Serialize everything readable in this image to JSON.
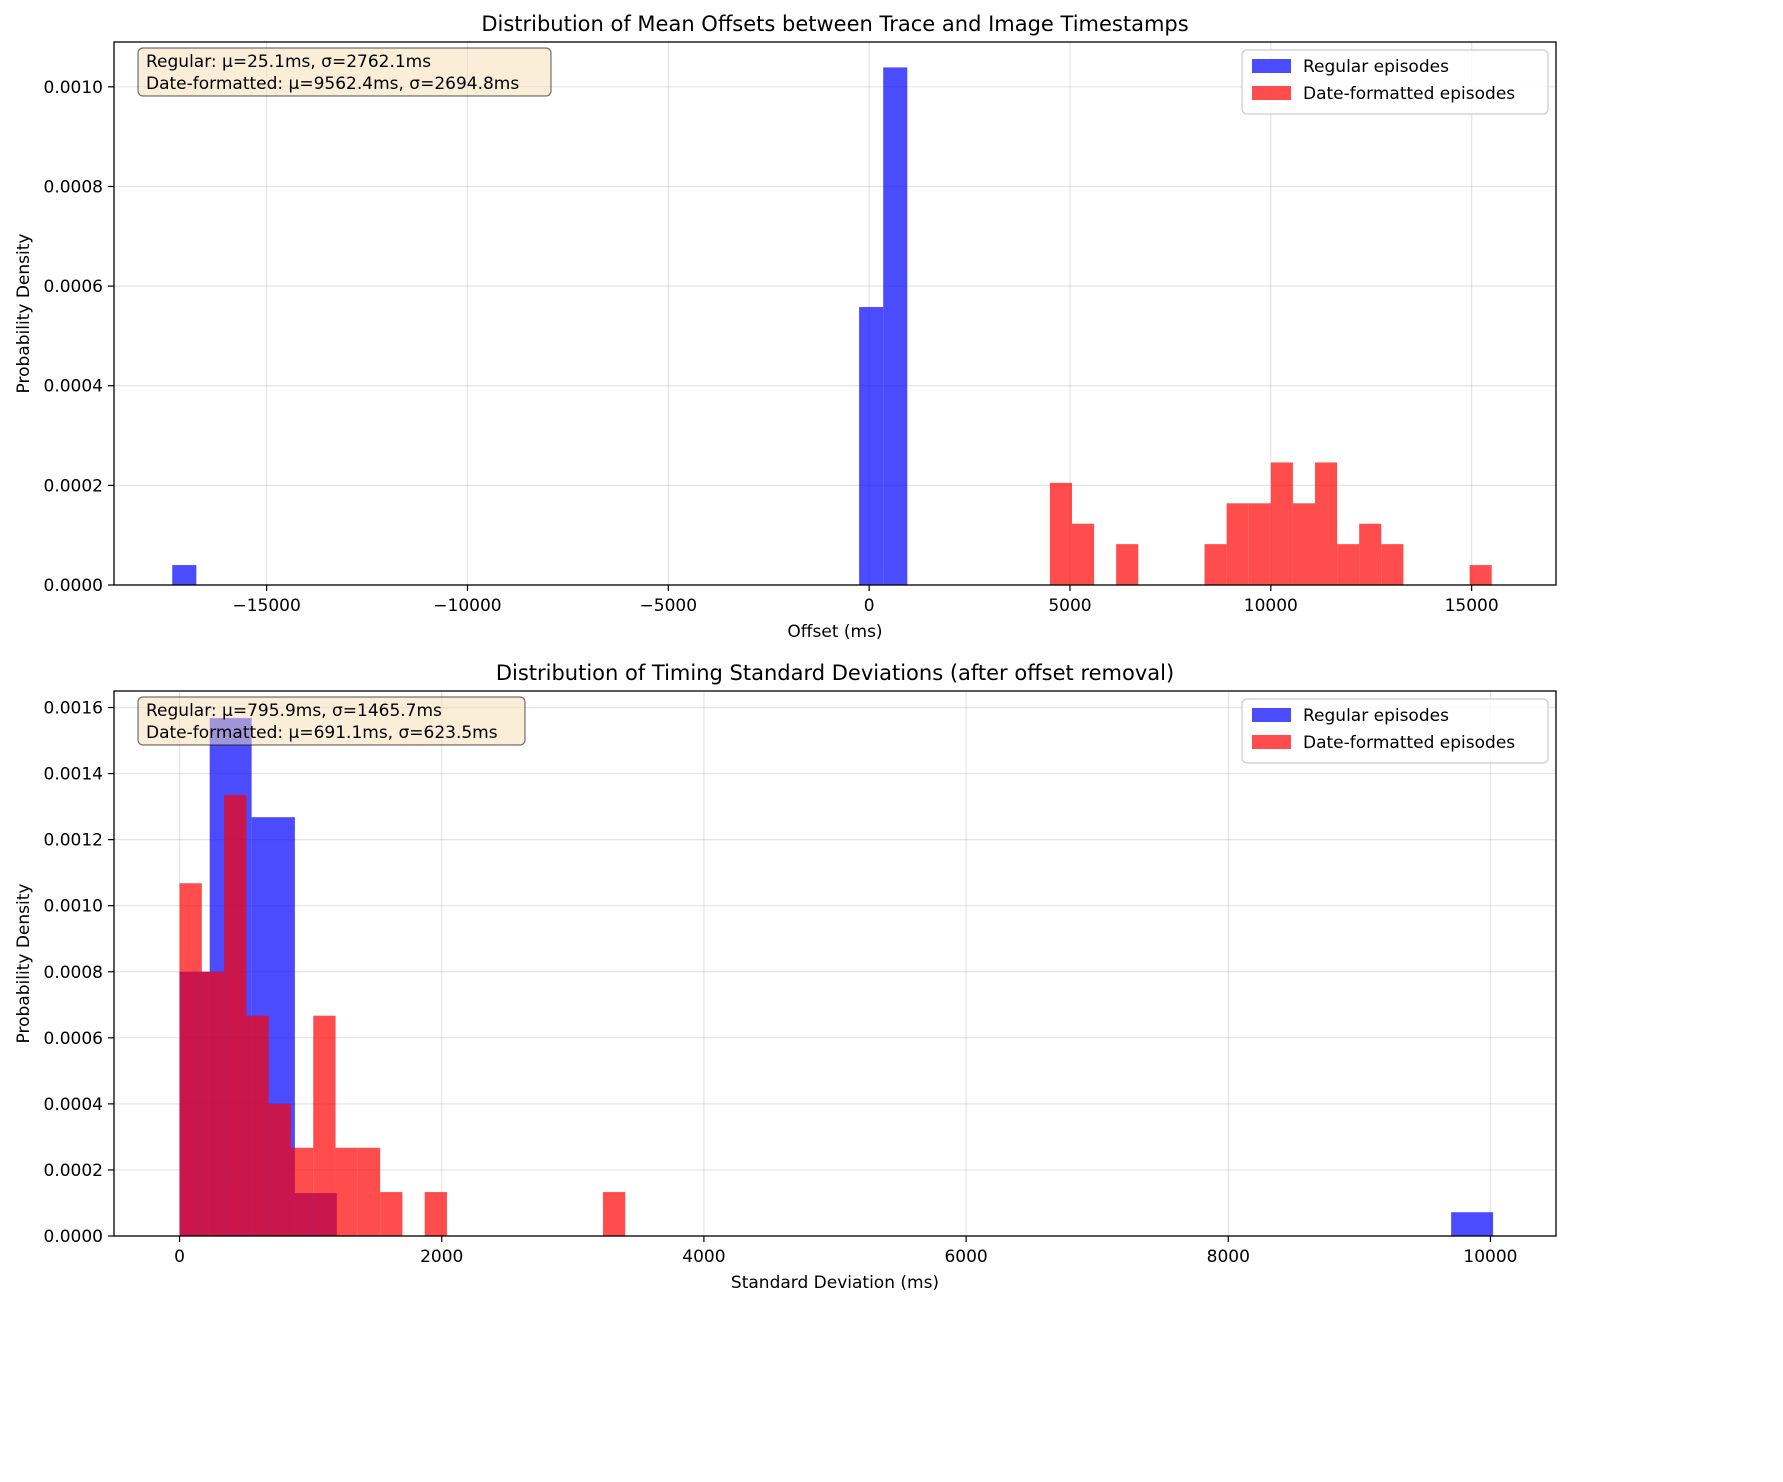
{
  "chart_data": [
    {
      "type": "histogram",
      "title": "Distribution of Mean Offsets between Trace and Image Timestamps",
      "xlabel": "Offset (ms)",
      "ylabel": "Probability Density",
      "xlim": [
        -18800,
        17100
      ],
      "ylim": [
        0,
        0.00109
      ],
      "xticks": [
        -15000,
        -10000,
        -5000,
        0,
        5000,
        10000,
        15000
      ],
      "xtick_labels": [
        "−15000",
        "−10000",
        "−5000",
        "0",
        "5000",
        "10000",
        "15000"
      ],
      "yticks": [
        0,
        0.0002,
        0.0004,
        0.0006,
        0.0008,
        0.001
      ],
      "ytick_labels": [
        "0.0000",
        "0.0002",
        "0.0004",
        "0.0006",
        "0.0008",
        "0.0010"
      ],
      "grid": true,
      "legend_position": "top-right",
      "stats_text": [
        "Regular: μ=25.1ms, σ=2762.1ms",
        "Date-formatted: μ=9562.4ms, σ=2694.8ms"
      ],
      "series": [
        {
          "name": "Regular episodes",
          "color": "#0000ff",
          "bins": [
            {
              "x0": -17350,
              "x1": -16750,
              "density": 4e-05
            },
            {
              "x0": -250,
              "x1": 350,
              "density": 0.000558
            },
            {
              "x0": 350,
              "x1": 950,
              "density": 0.001039
            }
          ]
        },
        {
          "name": "Date-formatted episodes",
          "color": "#ff0000",
          "bins": [
            {
              "x0": 4500,
              "x1": 5050,
              "density": 0.000205
            },
            {
              "x0": 5050,
              "x1": 5600,
              "density": 0.000123
            },
            {
              "x0": 6150,
              "x1": 6700,
              "density": 8.2e-05
            },
            {
              "x0": 8350,
              "x1": 8900,
              "density": 8.2e-05
            },
            {
              "x0": 8900,
              "x1": 9450,
              "density": 0.000164
            },
            {
              "x0": 9450,
              "x1": 10000,
              "density": 0.000164
            },
            {
              "x0": 10000,
              "x1": 10550,
              "density": 0.000246
            },
            {
              "x0": 10550,
              "x1": 11100,
              "density": 0.000164
            },
            {
              "x0": 11100,
              "x1": 11650,
              "density": 0.000246
            },
            {
              "x0": 11650,
              "x1": 12200,
              "density": 8.2e-05
            },
            {
              "x0": 12200,
              "x1": 12750,
              "density": 0.000123
            },
            {
              "x0": 12750,
              "x1": 13300,
              "density": 8.2e-05
            },
            {
              "x0": 14950,
              "x1": 15500,
              "density": 4e-05
            }
          ]
        }
      ]
    },
    {
      "type": "histogram",
      "title": "Distribution of Timing Standard Deviations (after offset removal)",
      "xlabel": "Standard Deviation (ms)",
      "ylabel": "Probability Density",
      "xlim": [
        -500,
        10500
      ],
      "ylim": [
        0,
        0.00165
      ],
      "xticks": [
        0,
        2000,
        4000,
        6000,
        8000,
        10000
      ],
      "xtick_labels": [
        "0",
        "2000",
        "4000",
        "6000",
        "8000",
        "10000"
      ],
      "yticks": [
        0,
        0.0002,
        0.0004,
        0.0006,
        0.0008,
        0.001,
        0.0012,
        0.0014,
        0.0016
      ],
      "ytick_labels": [
        "0.0000",
        "0.0002",
        "0.0004",
        "0.0006",
        "0.0008",
        "0.0010",
        "0.0012",
        "0.0014",
        "0.0016"
      ],
      "grid": true,
      "legend_position": "top-right",
      "stats_text": [
        "Regular: μ=795.9ms, σ=1465.7ms",
        "Date-formatted: μ=691.1ms, σ=623.5ms"
      ],
      "series": [
        {
          "name": "Regular episodes",
          "color": "#0000ff",
          "bins": [
            {
              "x0": 0,
              "x1": 230,
              "density": 0.0008
            },
            {
              "x0": 230,
              "x1": 550,
              "density": 0.001568
            },
            {
              "x0": 550,
              "x1": 880,
              "density": 0.001268
            },
            {
              "x0": 880,
              "x1": 1200,
              "density": 0.00013
            },
            {
              "x0": 9700,
              "x1": 10020,
              "density": 7.2e-05
            }
          ]
        },
        {
          "name": "Date-formatted episodes",
          "color": "#ff0000",
          "bins": [
            {
              "x0": 0,
              "x1": 170,
              "density": 0.001068
            },
            {
              "x0": 170,
              "x1": 340,
              "density": 0.0008
            },
            {
              "x0": 340,
              "x1": 510,
              "density": 0.001335
            },
            {
              "x0": 510,
              "x1": 680,
              "density": 0.000667
            },
            {
              "x0": 680,
              "x1": 850,
              "density": 0.0004
            },
            {
              "x0": 850,
              "x1": 1020,
              "density": 0.000267
            },
            {
              "x0": 1020,
              "x1": 1190,
              "density": 0.000667
            },
            {
              "x0": 1190,
              "x1": 1360,
              "density": 0.000267
            },
            {
              "x0": 1360,
              "x1": 1530,
              "density": 0.000267
            },
            {
              "x0": 1530,
              "x1": 1700,
              "density": 0.000133
            },
            {
              "x0": 1870,
              "x1": 2040,
              "density": 0.000133
            },
            {
              "x0": 3230,
              "x1": 3400,
              "density": 0.000133
            }
          ]
        }
      ]
    }
  ]
}
